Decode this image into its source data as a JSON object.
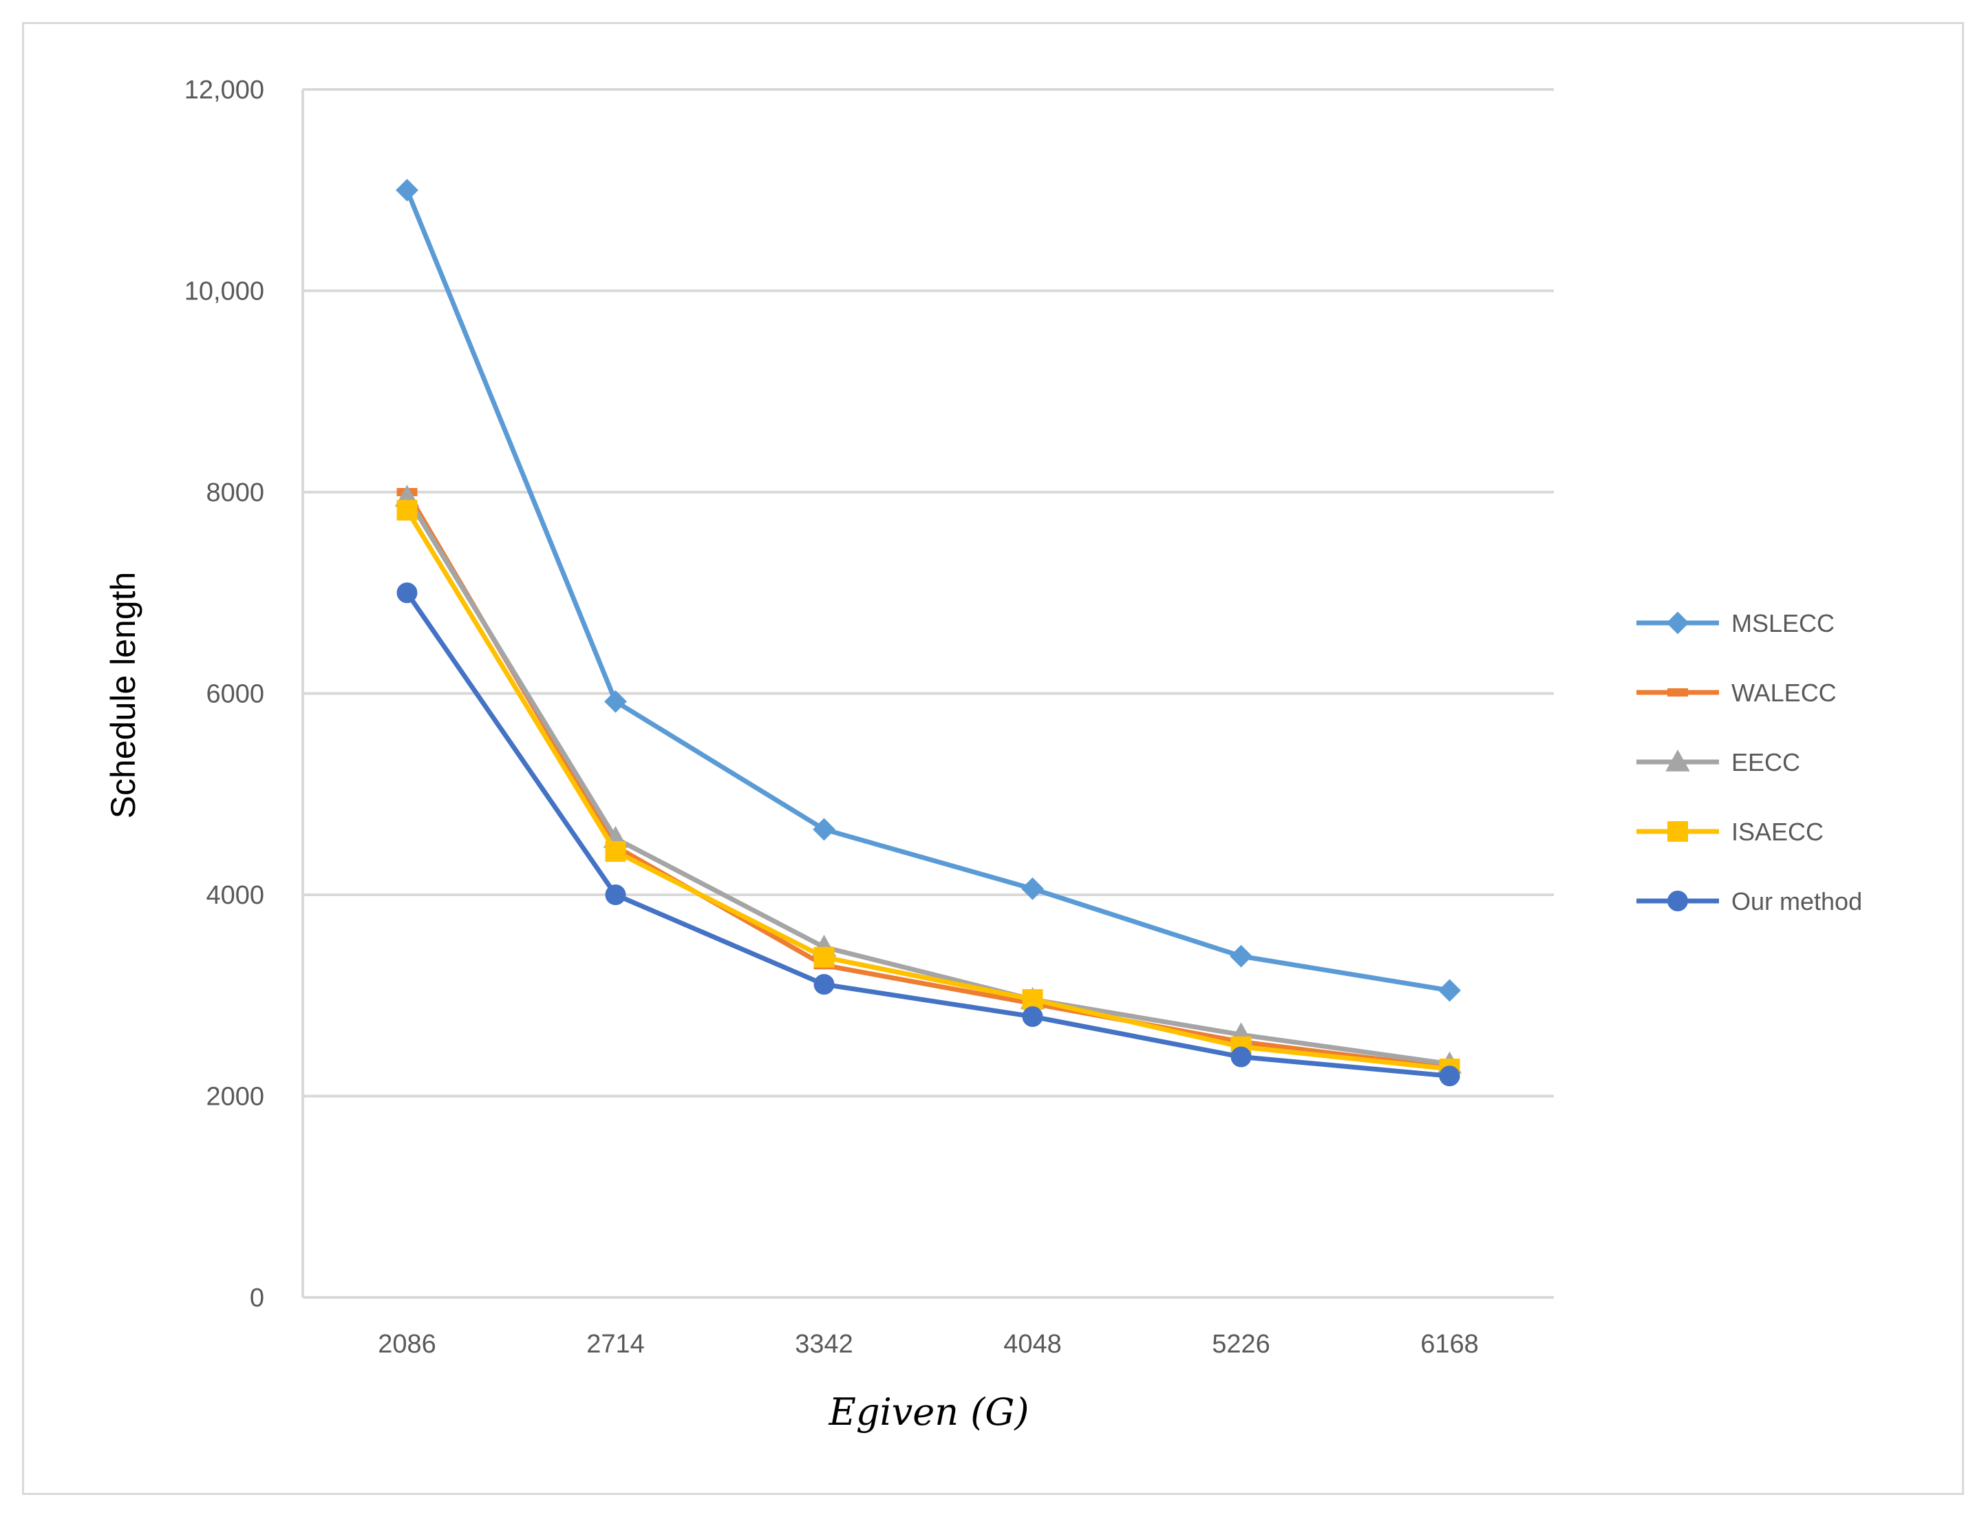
{
  "chart_data": {
    "type": "line",
    "title": "",
    "xlabel": "Egiven (G)",
    "ylabel": "Schedule length",
    "categories": [
      "2086",
      "2714",
      "3342",
      "4048",
      "5226",
      "6168"
    ],
    "ylim": [
      0,
      12000
    ],
    "yticks": [
      {
        "value": 0,
        "label": "0"
      },
      {
        "value": 2000,
        "label": "2000"
      },
      {
        "value": 4000,
        "label": "4000"
      },
      {
        "value": 6000,
        "label": "6000"
      },
      {
        "value": 8000,
        "label": "8000"
      },
      {
        "value": 10000,
        "label": "10,000"
      },
      {
        "value": 12000,
        "label": "12,000"
      }
    ],
    "grid": true,
    "legend_position": "right",
    "series": [
      {
        "name": "MSLECC",
        "color": "#5B9BD5",
        "marker": "diamond",
        "values": [
          11000,
          5920,
          4650,
          4060,
          3390,
          3050
        ]
      },
      {
        "name": "WALECC",
        "color": "#ED7D31",
        "marker": "dash",
        "values": [
          8000,
          4480,
          3300,
          2920,
          2540,
          2280
        ]
      },
      {
        "name": "EECC",
        "color": "#A5A5A5",
        "marker": "triangle",
        "values": [
          7950,
          4560,
          3480,
          2960,
          2610,
          2320
        ]
      },
      {
        "name": "ISAECC",
        "color": "#FFC000",
        "marker": "square",
        "values": [
          7820,
          4430,
          3380,
          2960,
          2490,
          2270
        ]
      },
      {
        "name": "Our method",
        "color": "#4472C4",
        "marker": "circle",
        "values": [
          7000,
          4000,
          3110,
          2790,
          2390,
          2200
        ]
      }
    ]
  }
}
